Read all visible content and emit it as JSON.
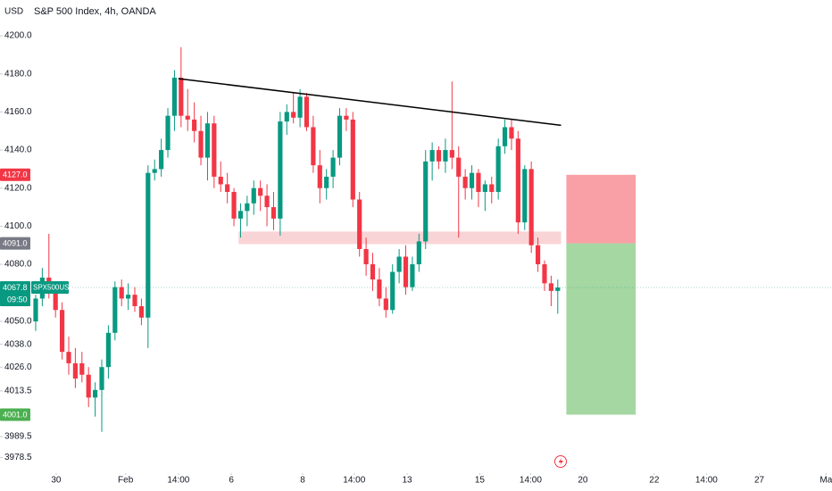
{
  "header": {
    "currency": "USD",
    "title": "S&P 500 Index, 4h, OANDA"
  },
  "chart_data": {
    "type": "candlestick",
    "up_color": "#089981",
    "down_color": "#f23645",
    "ylim": [
      3970.3,
      4218.8
    ],
    "yticks": [
      {
        "value": 4200,
        "label": "4200.0"
      },
      {
        "value": 4180,
        "label": "4180.0"
      },
      {
        "value": 4160,
        "label": "4160.0"
      },
      {
        "value": 4140,
        "label": "4140.0"
      },
      {
        "value": 4120,
        "label": "4120.0"
      },
      {
        "value": 4100,
        "label": "4100.0"
      },
      {
        "value": 4080,
        "label": "4080.0"
      },
      {
        "value": 4050,
        "label": "4050.0"
      },
      {
        "value": 4038,
        "label": "4038.0"
      },
      {
        "value": 4026,
        "label": "4026.0"
      },
      4013.5,
      3989.5,
      3978.5
    ],
    "xlim": [
      -5.4,
      120.5
    ],
    "xticks": [
      {
        "value": 3.1,
        "label": "30"
      },
      {
        "value": 13.6,
        "label": "Feb"
      },
      {
        "value": 21.6,
        "label": "14:00"
      },
      {
        "value": 29.6,
        "label": "6"
      },
      {
        "value": 40.4,
        "label": "8"
      },
      {
        "value": 48.2,
        "label": "14:00"
      },
      {
        "value": 56.2,
        "label": "13"
      },
      {
        "value": 67.2,
        "label": "15"
      },
      {
        "value": 74.9,
        "label": "14:00"
      },
      {
        "value": 82.8,
        "label": "20"
      },
      {
        "value": 93.6,
        "label": "22"
      },
      {
        "value": 101.5,
        "label": "14:00"
      },
      {
        "value": 109.5,
        "label": "27"
      },
      {
        "value": 119.6,
        "label": "Ma"
      }
    ],
    "x": [
      0,
      1,
      2,
      3,
      4,
      5,
      6,
      7,
      8,
      9,
      10,
      11,
      12,
      13,
      14,
      15,
      16,
      17,
      18,
      19,
      20,
      21,
      22,
      23,
      24,
      25,
      26,
      27,
      28,
      29,
      30,
      31,
      32,
      33,
      34,
      35,
      36,
      37,
      38,
      39,
      40,
      41,
      42,
      43,
      44,
      45,
      46,
      47,
      48,
      49,
      50,
      51,
      52,
      53,
      54,
      55,
      56,
      57,
      58,
      59,
      60,
      61,
      62,
      63,
      64,
      65,
      66,
      67,
      68,
      69,
      70,
      71,
      72,
      73,
      74,
      75,
      76,
      77,
      78,
      79
    ],
    "ohlc": [
      [
        4050,
        4064,
        4045,
        4062
      ],
      [
        4062,
        4078,
        4058,
        4073
      ],
      [
        4073,
        4096,
        4062,
        4066
      ],
      [
        4066,
        4070,
        4052,
        4056
      ],
      [
        4056,
        4060,
        4030,
        4034
      ],
      [
        4034,
        4042,
        4022,
        4028
      ],
      [
        4028,
        4036,
        4015,
        4020
      ],
      [
        4028,
        4034,
        4018,
        4022
      ],
      [
        4022,
        4026,
        4005,
        4010
      ],
      [
        4010,
        4018,
        4000,
        4014
      ],
      [
        4014,
        4030,
        3992,
        4026
      ],
      [
        4026,
        4048,
        4020,
        4044
      ],
      [
        4044,
        4071,
        4040,
        4068
      ],
      [
        4068,
        4072,
        4058,
        4062
      ],
      [
        4062,
        4070,
        4056,
        4064
      ],
      [
        4064,
        4068,
        4055,
        4058
      ],
      [
        4058,
        4062,
        4048,
        4052
      ],
      [
        4052,
        4132,
        4036,
        4128
      ],
      [
        4128,
        4135,
        4124,
        4130
      ],
      [
        4130,
        4146,
        4126,
        4140
      ],
      [
        4140,
        4162,
        4136,
        4158
      ],
      [
        4158,
        4182,
        4150,
        4178
      ],
      [
        4178,
        4194,
        4152,
        4158
      ],
      [
        4158,
        4172,
        4150,
        4156
      ],
      [
        4156,
        4165,
        4144,
        4150
      ],
      [
        4150,
        4158,
        4132,
        4136
      ],
      [
        4136,
        4160,
        4124,
        4154
      ],
      [
        4154,
        4158,
        4120,
        4126
      ],
      [
        4126,
        4134,
        4118,
        4122
      ],
      [
        4122,
        4128,
        4112,
        4118
      ],
      [
        4118,
        4120,
        4100,
        4104
      ],
      [
        4104,
        4112,
        4094,
        4108
      ],
      [
        4108,
        4116,
        4100,
        4112
      ],
      [
        4112,
        4124,
        4106,
        4120
      ],
      [
        4120,
        4124,
        4108,
        4116
      ],
      [
        4116,
        4122,
        4100,
        4110
      ],
      [
        4110,
        4118,
        4098,
        4104
      ],
      [
        4104,
        4160,
        4095,
        4155
      ],
      [
        4155,
        4164,
        4148,
        4160
      ],
      [
        4160,
        4170,
        4154,
        4157
      ],
      [
        4157,
        4172,
        4152,
        4168
      ],
      [
        4168,
        4170,
        4150,
        4152
      ],
      [
        4152,
        4158,
        4128,
        4132
      ],
      [
        4132,
        4140,
        4112,
        4120
      ],
      [
        4120,
        4130,
        4114,
        4126
      ],
      [
        4126,
        4140,
        4120,
        4136
      ],
      [
        4136,
        4162,
        4132,
        4158
      ],
      [
        4158,
        4162,
        4150,
        4156
      ],
      [
        4156,
        4160,
        4110,
        4114
      ],
      [
        4114,
        4118,
        4084,
        4088
      ],
      [
        4088,
        4094,
        4074,
        4080
      ],
      [
        4080,
        4086,
        4066,
        4072
      ],
      [
        4072,
        4078,
        4058,
        4062
      ],
      [
        4062,
        4068,
        4052,
        4056
      ],
      [
        4056,
        4080,
        4054,
        4076
      ],
      [
        4076,
        4088,
        4070,
        4084
      ],
      [
        4084,
        4090,
        4064,
        4068
      ],
      [
        4068,
        4084,
        4066,
        4080
      ],
      [
        4080,
        4096,
        4076,
        4092
      ],
      [
        4092,
        4140,
        4088,
        4134
      ],
      [
        4134,
        4144,
        4124,
        4140
      ],
      [
        4140,
        4142,
        4130,
        4134
      ],
      [
        4134,
        4146,
        4128,
        4140
      ],
      [
        4140,
        4176,
        4130,
        4136
      ],
      [
        4136,
        4142,
        4094,
        4126
      ],
      [
        4126,
        4130,
        4114,
        4120
      ],
      [
        4120,
        4132,
        4114,
        4128
      ],
      [
        4128,
        4130,
        4110,
        4118
      ],
      [
        4118,
        4124,
        4108,
        4122
      ],
      [
        4122,
        4126,
        4112,
        4118
      ],
      [
        4118,
        4146,
        4114,
        4142
      ],
      [
        4142,
        4156,
        4138,
        4152
      ],
      [
        4152,
        4156,
        4140,
        4146
      ],
      [
        4146,
        4150,
        4096,
        4102
      ],
      [
        4102,
        4132,
        4098,
        4130
      ],
      [
        4130,
        4134,
        4086,
        4090
      ],
      [
        4090,
        4094,
        4076,
        4080
      ],
      [
        4080,
        4082,
        4066,
        4070
      ],
      [
        4070,
        4074,
        4058,
        4066
      ],
      [
        4066,
        4072,
        4054,
        4067.8
      ]
    ],
    "trendline": {
      "x": [
        21.6,
        79.5
      ],
      "y": [
        4177.5,
        4153
      ]
    },
    "zone": {
      "x": [
        30.7,
        79.5
      ],
      "y": [
        4097.2,
        4090.6
      ],
      "color": "#f8c9cc"
    },
    "position": {
      "x": [
        80.3,
        90.8
      ],
      "stop": {
        "value": 4127,
        "label": "4127.0"
      },
      "entry": {
        "value": 4091,
        "label": "4091.0"
      },
      "target": {
        "value": 4001,
        "label": "4001.0"
      },
      "stop_color": "#f9a0a6",
      "target_color": "#a5d7a2"
    },
    "last_price": {
      "value": 4067.8,
      "symbol": "SPX500USD",
      "countdown": "09:50",
      "color": "#089981"
    }
  }
}
